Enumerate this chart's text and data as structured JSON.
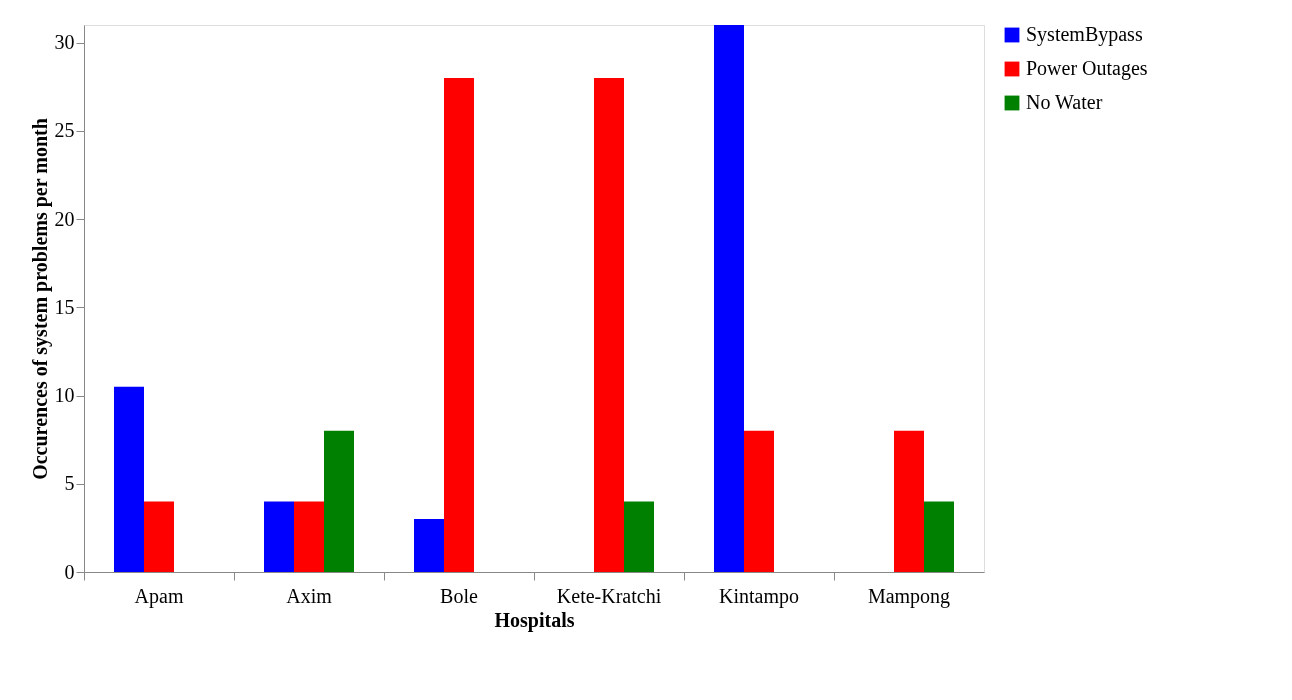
{
  "chart_data": {
    "type": "bar",
    "xlabel": "Hospitals",
    "ylabel": "Occurences of system problems per month",
    "categories": [
      "Apam",
      "Axim",
      "Bole",
      "Kete-Kratchi",
      "Kintampo",
      "Mampong"
    ],
    "series": [
      {
        "name": "SystemBypass",
        "color": "#0000ff",
        "values": [
          10.5,
          4,
          3,
          null,
          31,
          null
        ]
      },
      {
        "name": "Power Outages",
        "color": "#ff0000",
        "values": [
          4,
          4,
          28,
          28,
          8,
          8
        ]
      },
      {
        "name": "No Water",
        "color": "#008000",
        "values": [
          null,
          8,
          null,
          4,
          null,
          4
        ]
      }
    ],
    "ylim": [
      0,
      31
    ],
    "yticks": [
      0,
      5,
      10,
      15,
      20,
      25,
      30
    ],
    "grid": false,
    "legend": "right"
  }
}
